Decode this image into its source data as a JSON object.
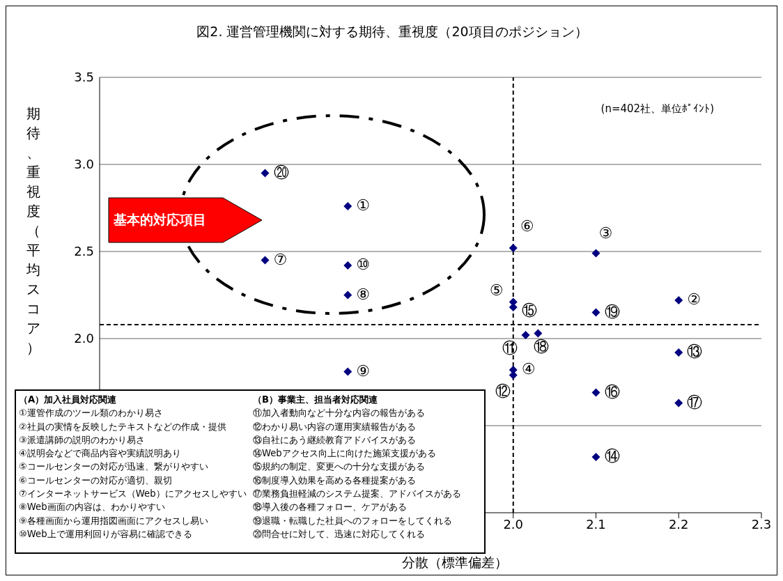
{
  "chart_data": {
    "type": "scatter",
    "title": "図2. 運営管理機関に対する期待、重視度（20項目のポジション）",
    "xlabel": "分散（標準偏差）",
    "ylabel": "期待、重視度（平均スコア）",
    "x": [
      1.8,
      2.2,
      2.1,
      2.0,
      2.0,
      2.0,
      1.7,
      1.8,
      1.8,
      1.8,
      2.015,
      2.0,
      2.2,
      2.1,
      2.0,
      2.1,
      2.2,
      2.03,
      2.1,
      1.7
    ],
    "values": [
      2.76,
      2.22,
      2.49,
      1.82,
      2.21,
      2.52,
      2.45,
      2.25,
      1.81,
      2.42,
      2.02,
      1.79,
      1.92,
      1.32,
      2.18,
      1.69,
      1.63,
      2.03,
      2.15,
      2.95
    ],
    "color": "#000080",
    "marker": "diamond",
    "xlim": [
      1.5,
      2.3
    ],
    "xticks": [
      {
        "value": 2.0,
        "label": "2.0"
      },
      2.1,
      2.2,
      2.3
    ],
    "ylim": [
      1.0,
      3.5
    ],
    "yticks": [
      {
        "value": 1.5,
        "label": null
      },
      {
        "value": 2.0,
        "label": "2.0"
      },
      2.5,
      {
        "value": 3.0,
        "label": "3.0"
      },
      3.5
    ],
    "grid": "y",
    "ref_lines": [
      {
        "axis": "x",
        "value": 2.0,
        "color": "#000000",
        "line_style": "dashed"
      },
      {
        "axis": "y",
        "value": 2.08,
        "color": "#000000",
        "line_style": "dashed"
      }
    ],
    "annotations": [
      "(n=402社、単位ﾎﾟｲﾝﾄ)",
      "基本的対応項目",
      "（A）加入社員対応関連",
      "①運管作成のツール類のわかり易さ",
      "②社員の実情を反映したテキストなどの作成・提供",
      "③派遣講師の説明のわかり易さ",
      "④説明会などで商品内容や実績説明あり",
      "⑤コールセンターの対応が迅速、繋がりやすい",
      "⑥コールセンターの対応が適切、親切",
      "⑦インターネットサービス（Web）にアクセスしやすい",
      "⑧Web画面の内容は、わかりやすい",
      "⑨各種画面から運用指図画面にアクセスし易い",
      "⑩Web上で運用利回りが容易に確認できる",
      "（B）事業主、担当者対応関連",
      "⑪加入者動向など十分な内容の報告がある",
      "⑫わかり易い内容の運用実績報告がある",
      "⑬自社にあう継続教育アドバイスがある",
      "⑭Webアクセス向上に向けた施策支援がある",
      "⑮規約の制定、変更への十分な支援がある",
      "⑯制度導入効果を高める各種提案がある",
      "⑰業務負担軽減のシステム提案、アドバイスがある",
      "⑱導入後の各種フォロー、ケアがある",
      "⑲退職・転職した社員へのフォローをしてくれる",
      "⑳問合せに対して、迅速に対応してくれる",
      {
        "text": "①",
        "x": 1.8,
        "y": 2.76
      },
      {
        "text": "②",
        "x": 2.2,
        "y": 2.22
      },
      {
        "text": "③",
        "x": 2.1,
        "y": 2.49
      },
      {
        "text": "④",
        "x": 2.0,
        "y": 1.82
      },
      {
        "text": "⑤",
        "x": 2.0,
        "y": 2.21
      },
      {
        "text": "⑥",
        "x": 2.0,
        "y": 2.52
      },
      {
        "text": "⑦",
        "x": 1.7,
        "y": 2.45
      },
      {
        "text": "⑧",
        "x": 1.8,
        "y": 2.25
      },
      {
        "text": "⑨",
        "x": 1.8,
        "y": 1.81
      },
      {
        "text": "⑩",
        "x": 1.8,
        "y": 2.42
      },
      {
        "text": "⑪",
        "x": 2.015,
        "y": 2.02
      },
      {
        "text": "⑫",
        "x": 2.0,
        "y": 1.79
      },
      {
        "text": "⑬",
        "x": 2.2,
        "y": 1.92
      },
      {
        "text": "⑭",
        "x": 2.1,
        "y": 1.32
      },
      {
        "text": "⑮",
        "x": 2.0,
        "y": 2.18
      },
      {
        "text": "⑯",
        "x": 2.1,
        "y": 1.69
      },
      {
        "text": "⑰",
        "x": 2.2,
        "y": 1.63
      },
      {
        "text": "⑱",
        "x": 2.03,
        "y": 2.03
      },
      {
        "text": "⑲",
        "x": 2.1,
        "y": 2.15
      },
      {
        "text": "⑳",
        "x": 1.7,
        "y": 2.95
      }
    ]
  }
}
